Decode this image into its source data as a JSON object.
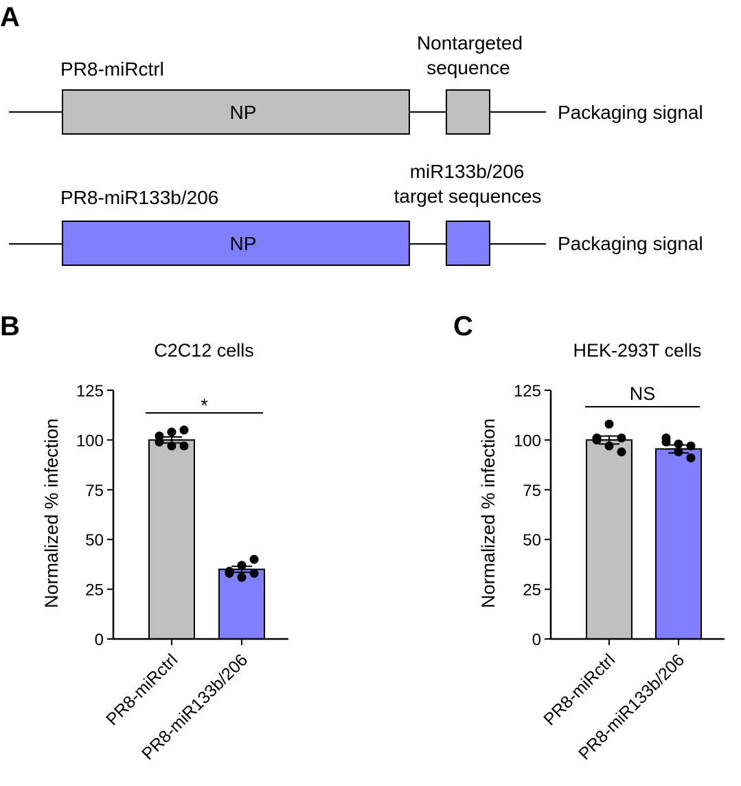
{
  "panels": {
    "a": {
      "letter": "A",
      "constructs": [
        {
          "name": "PR8-miRctrl",
          "gene": "NP",
          "insert_label_line1": "Nontargeted",
          "insert_label_line2": "sequence",
          "trailing_label": "Packaging signal",
          "color": "#c0c0c0"
        },
        {
          "name": "PR8-miR133b/206",
          "gene": "NP",
          "insert_label_line1": "miR133b/206",
          "insert_label_line2": "target sequences",
          "trailing_label": "Packaging signal",
          "color": "#8080ff"
        }
      ]
    },
    "b": {
      "letter": "B"
    },
    "c": {
      "letter": "C"
    }
  },
  "chart_data": [
    {
      "type": "bar",
      "title": "C2C12 cells",
      "ylabel": "Normalized % infection",
      "xlabel": "",
      "ylim": [
        0,
        125
      ],
      "yticks": [
        0,
        25,
        50,
        75,
        100,
        125
      ],
      "categories": [
        "PR8-miRctrl",
        "PR8-miR133b/206"
      ],
      "values": [
        100,
        35
      ],
      "errors": [
        1.5,
        1.5
      ],
      "colors": [
        "#c0c0c0",
        "#8080ff"
      ],
      "points": [
        [
          102,
          104,
          105,
          99,
          97,
          97
        ],
        [
          34,
          37,
          40,
          33,
          31,
          33
        ]
      ],
      "significance": "*"
    },
    {
      "type": "bar",
      "title": "HEK-293T cells",
      "ylabel": "Normalized % infection",
      "xlabel": "",
      "ylim": [
        0,
        125
      ],
      "yticks": [
        0,
        25,
        50,
        75,
        100,
        125
      ],
      "categories": [
        "PR8-miRctrl",
        "PR8-miR133b/206"
      ],
      "values": [
        100,
        95.5
      ],
      "errors": [
        2,
        2
      ],
      "colors": [
        "#c0c0c0",
        "#8080ff"
      ],
      "points": [
        [
          100,
          108,
          101,
          101,
          97,
          94
        ],
        [
          101,
          98,
          97,
          99,
          94,
          91
        ]
      ],
      "significance": "NS"
    }
  ]
}
